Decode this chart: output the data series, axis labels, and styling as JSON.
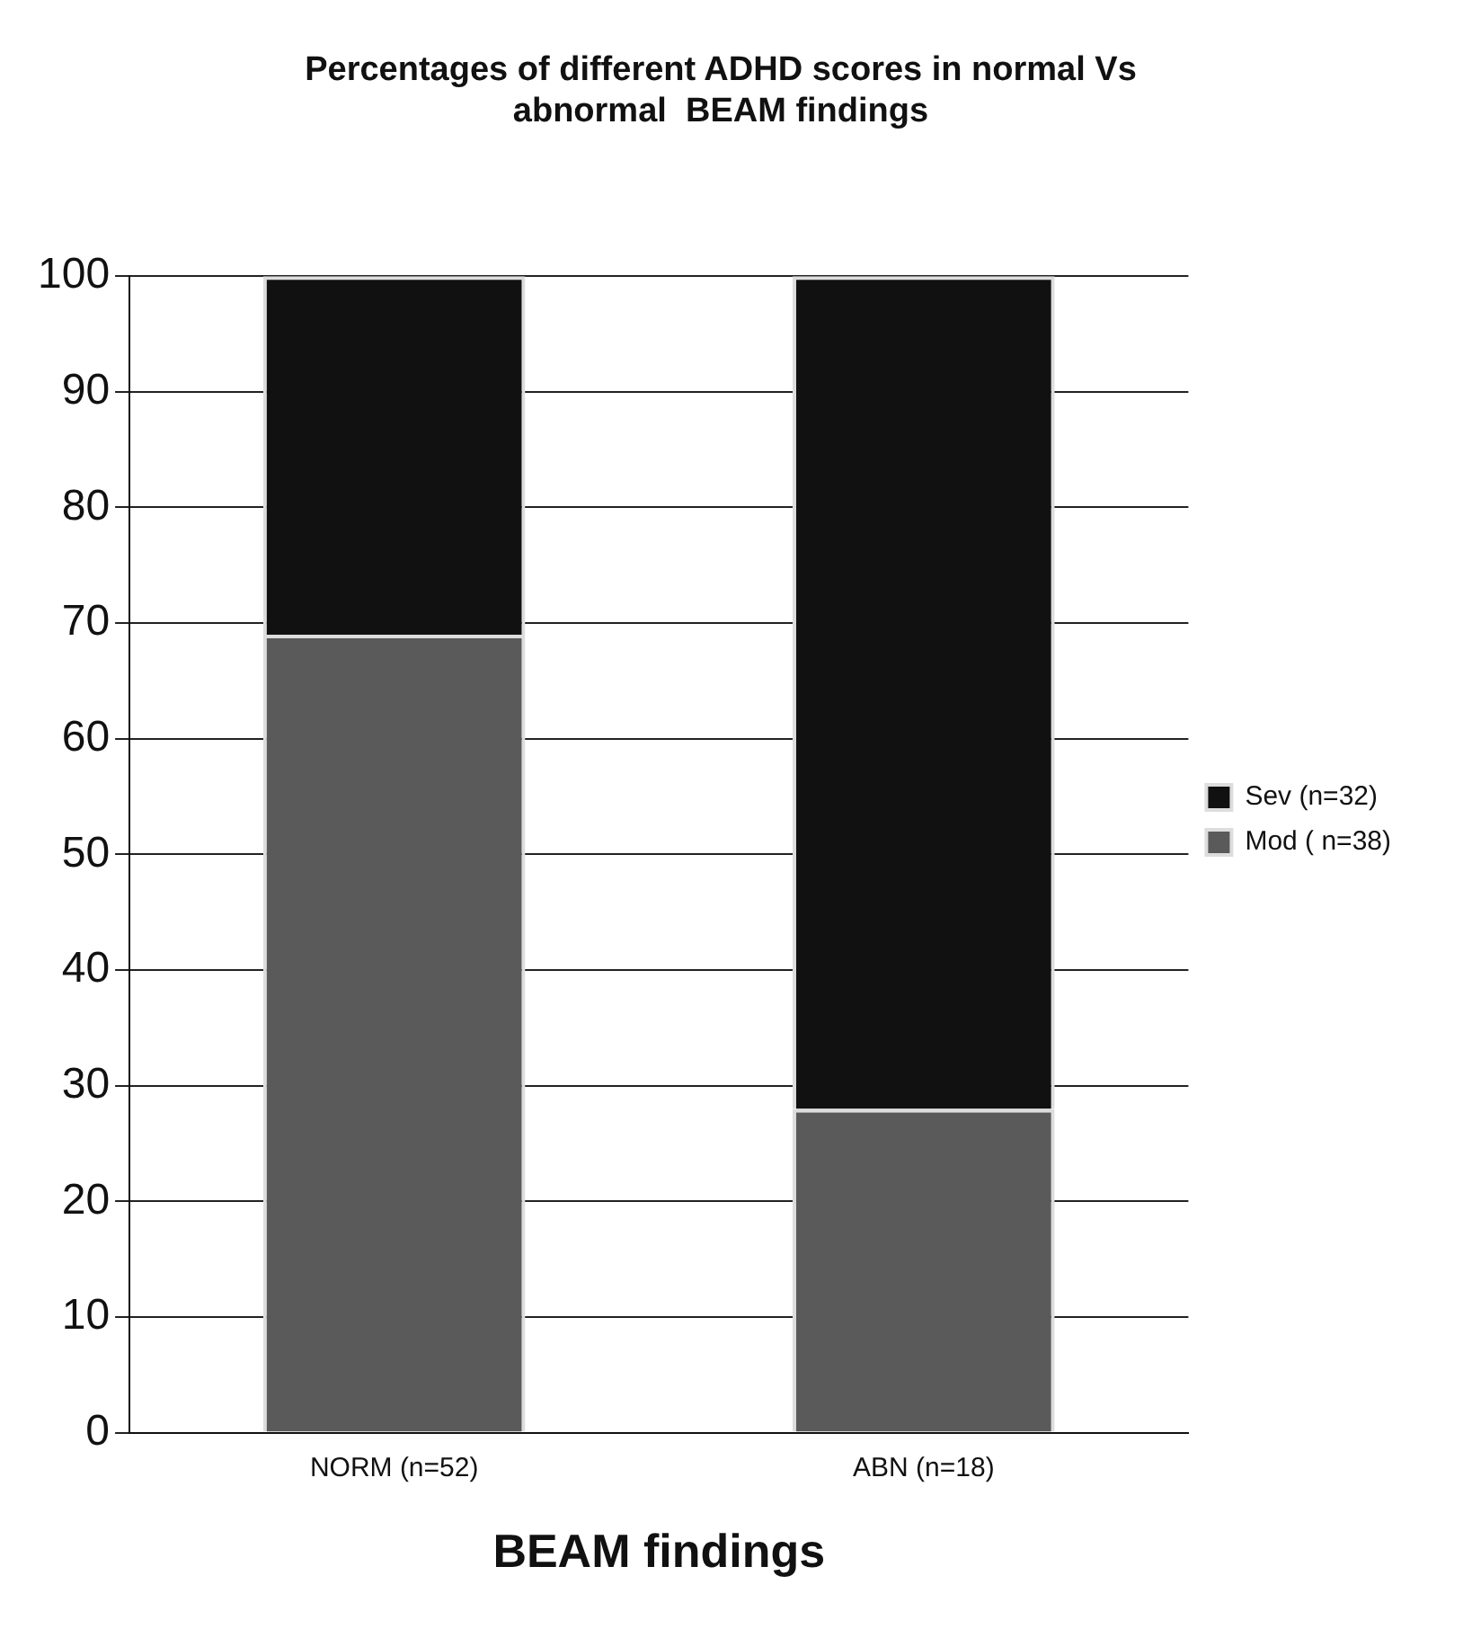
{
  "chart_data": {
    "type": "bar",
    "title": "Percentages of different ADHD scores in normal Vs abnormal  BEAM findings",
    "xlabel": "BEAM findings",
    "categories": [
      "NORM (n=52)",
      "ABN (n=18)"
    ],
    "stacked": true,
    "series": [
      {
        "name": "Mod ( n=38)",
        "color": "#5a5a5a",
        "values": [
          69,
          28
        ]
      },
      {
        "name": "Sev (n=32)",
        "color": "#111111",
        "values": [
          31,
          72
        ]
      }
    ],
    "ylim": [
      0,
      100
    ],
    "yticks": [
      0,
      10,
      20,
      30,
      40,
      50,
      60,
      70,
      80,
      90,
      100
    ],
    "grid": "y",
    "legend": "right"
  }
}
